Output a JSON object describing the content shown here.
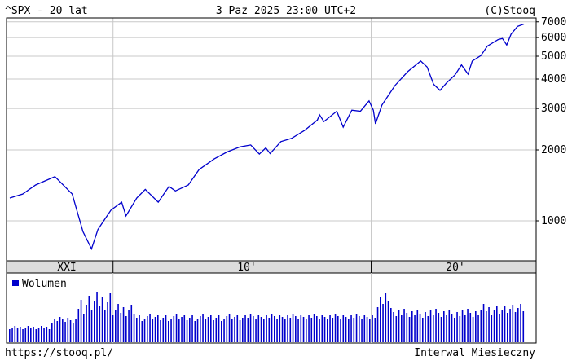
{
  "header": {
    "left": "^SPX - 20 lat",
    "center": "3 Paz 2025 23:00 UTC+2",
    "right": "(C)Stooq"
  },
  "footer": {
    "left": "https://stooq.pl/",
    "right": "Interwal Miesieczny"
  },
  "colors": {
    "line": "#0000cc",
    "volume": "#0000cc",
    "grid": "#c8c8c8",
    "band": "#dcdcdc"
  },
  "chart_data": [
    {
      "type": "line",
      "title": "",
      "y_scale": "log",
      "ylim": [
        700,
        7500
      ],
      "y_ticks": [
        "7000",
        "6000",
        "5000",
        "4000",
        "3000",
        "2000",
        "1000"
      ],
      "x_band_labels": [
        "XXI",
        "10'",
        "20'"
      ],
      "grid": true,
      "series": [
        {
          "x": [
            "2006-01",
            "2006-07",
            "2007-01",
            "2007-10",
            "2008-06",
            "2008-11",
            "2009-03",
            "2009-06",
            "2009-12",
            "2010-05",
            "2010-07",
            "2010-12",
            "2011-04",
            "2011-10",
            "2012-03",
            "2012-06",
            "2012-12",
            "2013-05",
            "2013-12",
            "2014-06",
            "2014-12",
            "2015-05",
            "2015-09",
            "2015-12",
            "2016-02",
            "2016-07",
            "2016-12",
            "2017-06",
            "2017-12",
            "2018-01",
            "2018-03",
            "2018-09",
            "2018-12",
            "2019-04",
            "2019-08",
            "2019-12",
            "2020-02",
            "2020-03",
            "2020-06",
            "2020-12",
            "2021-06",
            "2021-12",
            "2022-03",
            "2022-06",
            "2022-09",
            "2022-12",
            "2023-04",
            "2023-07",
            "2023-10",
            "2023-12",
            "2024-04",
            "2024-07",
            "2024-12",
            "2025-02",
            "2025-04",
            "2025-06",
            "2025-09",
            "2025-12"
          ],
          "values": [
            1250,
            1300,
            1420,
            1540,
            1300,
            900,
            760,
            920,
            1110,
            1200,
            1050,
            1250,
            1360,
            1200,
            1400,
            1340,
            1420,
            1650,
            1830,
            1960,
            2060,
            2100,
            1920,
            2040,
            1930,
            2170,
            2240,
            2420,
            2680,
            2820,
            2640,
            2920,
            2500,
            2950,
            2920,
            3230,
            2950,
            2580,
            3100,
            3750,
            4300,
            4770,
            4500,
            3800,
            3580,
            3850,
            4170,
            4590,
            4200,
            4770,
            5030,
            5520,
            5880,
            5950,
            5580,
            6200,
            6690,
            6850
          ]
        }
      ]
    },
    {
      "type": "bar",
      "legend": "Wolumen"
    }
  ]
}
